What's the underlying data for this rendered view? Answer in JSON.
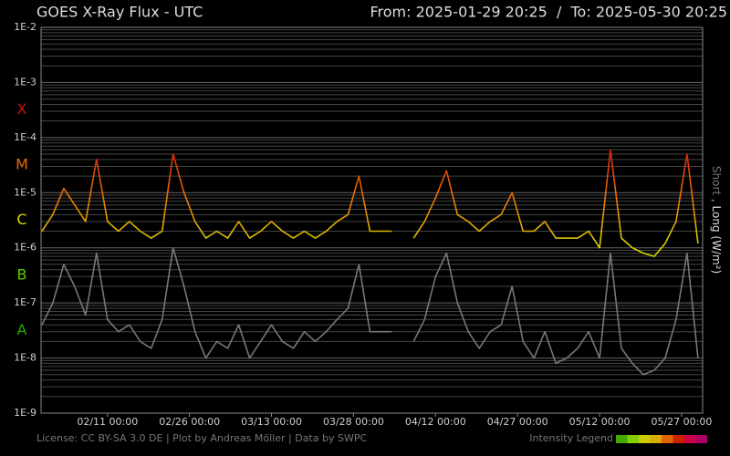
{
  "chart_data": {
    "type": "line",
    "title": "GOES X-Ray Flux - UTC",
    "subtitle": "From: 2025-01-29 20:25  /  To: 2025-05-30 20:25",
    "log_scale": true,
    "grid": true,
    "background": "#000000",
    "xlim": [
      "2025-01-29 20:25",
      "2025-05-30 20:25"
    ],
    "xticks": [
      {
        "value": "2025-02-11 00:00",
        "label": "02/11 00:00"
      },
      {
        "value": "2025-02-26 00:00",
        "label": "02/26 00:00"
      },
      {
        "value": "2025-03-13 00:00",
        "label": "03/13 00:00"
      },
      {
        "value": "2025-03-28 00:00",
        "label": "03/28 00:00"
      },
      {
        "value": "2025-04-12 00:00",
        "label": "04/12 00:00"
      },
      {
        "value": "2025-04-27 00:00",
        "label": "04/27 00:00"
      },
      {
        "value": "2025-05-12 00:00",
        "label": "05/12 00:00"
      },
      {
        "value": "2025-05-27 00:00",
        "label": "05/27 00:00"
      }
    ],
    "ylim": [
      1e-09,
      0.01
    ],
    "yticks": [
      {
        "value": 0.01,
        "label": "1E-2"
      },
      {
        "value": 0.001,
        "label": "1E-3"
      },
      {
        "value": 0.0001,
        "label": "1E-4"
      },
      {
        "value": 1e-05,
        "label": "1E-5"
      },
      {
        "value": 1e-06,
        "label": "1E-6"
      },
      {
        "value": 1e-07,
        "label": "1E-7"
      },
      {
        "value": 1e-08,
        "label": "1E-8"
      },
      {
        "value": 1e-09,
        "label": "1E-9"
      }
    ],
    "flare_classes": [
      {
        "label": "A",
        "value": 1e-08,
        "color": "#22aa00"
      },
      {
        "label": "B",
        "value": 1e-07,
        "color": "#66cc00"
      },
      {
        "label": "C",
        "value": 1e-06,
        "color": "#d8d800"
      },
      {
        "label": "M",
        "value": 1e-05,
        "color": "#e86a00"
      },
      {
        "label": "X",
        "value": 0.0001,
        "color": "#cc1010"
      }
    ],
    "legend_separator": ",",
    "y_unit": "(W/m²)",
    "x": [
      "2025-01-30 00:00",
      "2025-02-01 00:00",
      "2025-02-03 00:00",
      "2025-02-05 00:00",
      "2025-02-07 00:00",
      "2025-02-09 00:00",
      "2025-02-11 00:00",
      "2025-02-13 00:00",
      "2025-02-15 00:00",
      "2025-02-17 00:00",
      "2025-02-19 00:00",
      "2025-02-21 00:00",
      "2025-02-23 00:00",
      "2025-02-25 00:00",
      "2025-02-27 00:00",
      "2025-03-01 00:00",
      "2025-03-03 00:00",
      "2025-03-05 00:00",
      "2025-03-07 00:00",
      "2025-03-09 00:00",
      "2025-03-11 00:00",
      "2025-03-13 00:00",
      "2025-03-15 00:00",
      "2025-03-17 00:00",
      "2025-03-19 00:00",
      "2025-03-21 00:00",
      "2025-03-23 00:00",
      "2025-03-25 00:00",
      "2025-03-27 00:00",
      "2025-03-29 00:00",
      "2025-03-31 00:00",
      "2025-04-02 00:00",
      "2025-04-04 00:00",
      "2025-04-06 00:00",
      "2025-04-08 00:00",
      "2025-04-10 00:00",
      "2025-04-12 00:00",
      "2025-04-14 00:00",
      "2025-04-16 00:00",
      "2025-04-18 00:00",
      "2025-04-20 00:00",
      "2025-04-22 00:00",
      "2025-04-24 00:00",
      "2025-04-26 00:00",
      "2025-04-28 00:00",
      "2025-04-30 00:00",
      "2025-05-02 00:00",
      "2025-05-04 00:00",
      "2025-05-06 00:00",
      "2025-05-08 00:00",
      "2025-05-10 00:00",
      "2025-05-12 00:00",
      "2025-05-14 00:00",
      "2025-05-16 00:00",
      "2025-05-18 00:00",
      "2025-05-20 00:00",
      "2025-05-22 00:00",
      "2025-05-24 00:00",
      "2025-05-26 00:00",
      "2025-05-28 00:00",
      "2025-05-30 00:00"
    ],
    "series": [
      {
        "name": "Short",
        "color": "#777777",
        "values": [
          4e-08,
          1e-07,
          5e-07,
          2e-07,
          6e-08,
          8e-07,
          5e-08,
          3e-08,
          4e-08,
          2e-08,
          1.5e-08,
          5e-08,
          1e-06,
          2e-07,
          3e-08,
          1e-08,
          2e-08,
          1.5e-08,
          4e-08,
          1e-08,
          2e-08,
          4e-08,
          2e-08,
          1.5e-08,
          3e-08,
          2e-08,
          3e-08,
          5e-08,
          8e-08,
          5e-07,
          3e-08,
          3e-08,
          3e-08,
          null,
          2e-08,
          5e-08,
          3e-07,
          8e-07,
          1e-07,
          3e-08,
          1.5e-08,
          3e-08,
          4e-08,
          2e-07,
          2e-08,
          1e-08,
          3e-08,
          8e-09,
          1e-08,
          1.5e-08,
          3e-08,
          1e-08,
          8e-07,
          1.5e-08,
          8e-09,
          5e-09,
          6e-09,
          1e-08,
          5e-08,
          8e-07,
          1e-08
        ]
      },
      {
        "name": "Long",
        "color": "flare_classes",
        "values": [
          2e-06,
          4e-06,
          1.2e-05,
          6e-06,
          3e-06,
          4e-05,
          3e-06,
          2e-06,
          3e-06,
          2e-06,
          1.5e-06,
          2e-06,
          5e-05,
          1e-05,
          3e-06,
          1.5e-06,
          2e-06,
          1.5e-06,
          3e-06,
          1.5e-06,
          2e-06,
          3e-06,
          2e-06,
          1.5e-06,
          2e-06,
          1.5e-06,
          2e-06,
          3e-06,
          4e-06,
          2e-05,
          2e-06,
          2e-06,
          2e-06,
          null,
          1.5e-06,
          3e-06,
          8e-06,
          2.5e-05,
          4e-06,
          3e-06,
          2e-06,
          3e-06,
          4e-06,
          1e-05,
          2e-06,
          2e-06,
          3e-06,
          1.5e-06,
          1.5e-06,
          1.5e-06,
          2e-06,
          1e-06,
          6e-05,
          1.5e-06,
          1e-06,
          8e-07,
          7e-07,
          1.2e-06,
          3e-06,
          5e-05,
          1.2e-06
        ]
      }
    ],
    "footer": "License: CC BY-SA 3.0 DE | Plot by Andreas Möller | Data by SWPC",
    "intensity_legend": {
      "label": "Intensity Legend",
      "colors": [
        "#44aa00",
        "#88cc00",
        "#cccc00",
        "#ddaa00",
        "#dd6600",
        "#cc2200",
        "#cc0044",
        "#aa0066"
      ]
    }
  }
}
